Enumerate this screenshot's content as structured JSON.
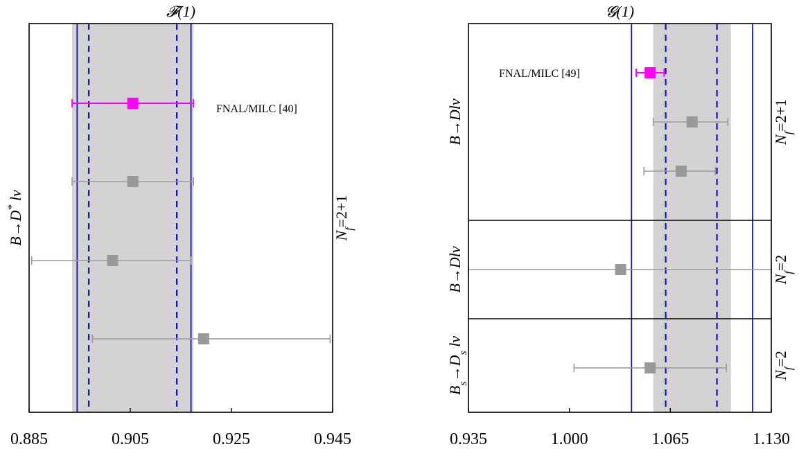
{
  "chart_data": [
    {
      "type": "scatter",
      "title": "𝓕(1)",
      "xlim": [
        0.885,
        0.945
      ],
      "ticks": [
        "0.885",
        "0.905",
        "0.925",
        "0.945"
      ],
      "tick_values": [
        0.885,
        0.905,
        0.925,
        0.945
      ],
      "band": {
        "low": 0.8935,
        "high": 0.9175
      },
      "solid_lines": [
        0.8945,
        0.917
      ],
      "dashed_lines": [
        0.8968,
        0.9142
      ],
      "panels": [
        {
          "label": "B→D* lν",
          "label_main": "B→D",
          "label_sup": "*",
          "label_tail": " lν",
          "nf_label": "Nf=2+1",
          "nf_main": "N",
          "nf_sub": "f",
          "nf_tail": "=2+1",
          "points": [
            {
              "value": 0.9055,
              "low": 0.8935,
              "high": 0.9175,
              "color": "#ff00ff",
              "label": "FNAL/MILC [40]"
            },
            {
              "value": 0.9055,
              "low": 0.8935,
              "high": 0.9175,
              "color": "#999999"
            },
            {
              "value": 0.9015,
              "low": 0.8855,
              "high": 0.917,
              "color": "#999999"
            },
            {
              "value": 0.9195,
              "low": 0.8975,
              "high": 0.9445,
              "color": "#999999"
            }
          ]
        }
      ]
    },
    {
      "type": "scatter",
      "title": "𝓖(1)",
      "xlim": [
        0.935,
        1.13
      ],
      "ticks": [
        "0.935",
        "1.000",
        "1.065",
        "1.130"
      ],
      "tick_values": [
        0.935,
        1.0,
        1.065,
        1.13
      ],
      "band": {
        "low": 1.054,
        "high": 1.104
      },
      "solid_lines": [
        1.04,
        1.118
      ],
      "dashed_lines": [
        1.062,
        1.095
      ],
      "panels": [
        {
          "label": "B→Dlν",
          "label_main": "B→Dlν",
          "nf_label": "Nf=2+1",
          "nf_main": "N",
          "nf_sub": "f",
          "nf_tail": "=2+1",
          "points": [
            {
              "value": 1.052,
              "low": 1.043,
              "high": 1.061,
              "color": "#ff00ff",
              "label": "FNAL/MILC [49]"
            },
            {
              "value": 1.079,
              "low": 1.054,
              "high": 1.102,
              "color": "#999999"
            },
            {
              "value": 1.072,
              "low": 1.048,
              "high": 1.094,
              "color": "#999999"
            }
          ]
        },
        {
          "label": "B→Dlν",
          "label_main": "B→Dlν",
          "nf_label": "Nf=2",
          "nf_main": "N",
          "nf_sub": "f",
          "nf_tail": "=2",
          "points": [
            {
              "value": 1.033,
              "low": 0.935,
              "high": 1.13,
              "color": "#999999"
            }
          ]
        },
        {
          "label": "Bs→Ds lν",
          "label_main": "B",
          "label_sub1": "s",
          "label_mid": "→D",
          "label_sub2": "s",
          "label_tail": " lν",
          "nf_label": "Nf=2",
          "nf_main": "N",
          "nf_sub": "f",
          "nf_tail": "=2",
          "points": [
            {
              "value": 1.052,
              "low": 1.003,
              "high": 1.101,
              "color": "#999999"
            }
          ]
        }
      ]
    }
  ]
}
